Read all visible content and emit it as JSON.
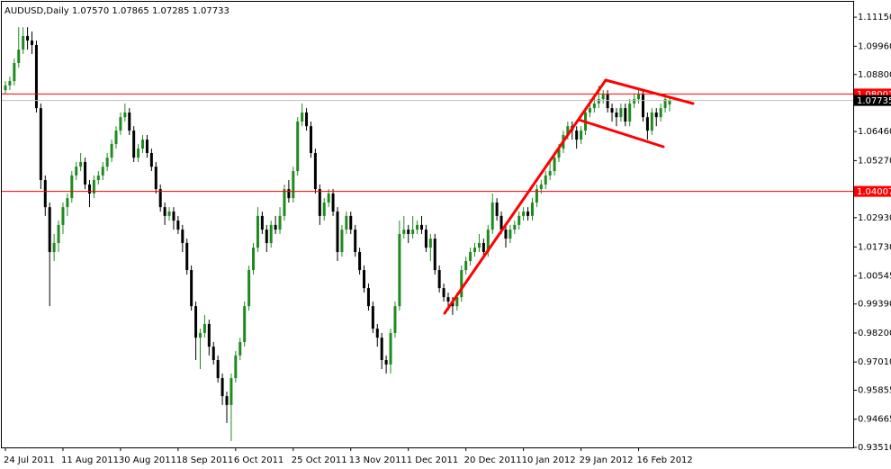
{
  "chart_data": {
    "type": "candlestick",
    "title": "AUDUSD,Daily 1.07570 1.07865 1.07285 1.07733",
    "categories": [
      "24 Jul 2011",
      null,
      null,
      null,
      null,
      null,
      null,
      null,
      null,
      null,
      null,
      null,
      null,
      "11 Aug 2011",
      null,
      null,
      null,
      null,
      null,
      null,
      null,
      null,
      null,
      null,
      null,
      null,
      "30 Aug 2011",
      null,
      null,
      null,
      null,
      null,
      null,
      null,
      null,
      null,
      null,
      null,
      null,
      "18 Sep 2011",
      null,
      null,
      null,
      null,
      null,
      null,
      null,
      null,
      null,
      null,
      null,
      null,
      "6 Oct 2011",
      null,
      null,
      null,
      null,
      null,
      null,
      null,
      null,
      null,
      null,
      null,
      null,
      "25 Oct 2011",
      null,
      null,
      null,
      null,
      null,
      null,
      null,
      null,
      null,
      null,
      null,
      null,
      "13 Nov 2011",
      null,
      null,
      null,
      null,
      null,
      null,
      null,
      null,
      null,
      null,
      null,
      null,
      "1 Dec 2011",
      null,
      null,
      null,
      null,
      null,
      null,
      null,
      null,
      null,
      null,
      null,
      null,
      "20 Dec 2011",
      null,
      null,
      null,
      null,
      null,
      null,
      null,
      null,
      null,
      null,
      null,
      null,
      "10 Jan 2012",
      null,
      null,
      null,
      null,
      null,
      null,
      null,
      null,
      null,
      null,
      null,
      null,
      "29 Jan 2012",
      null,
      null,
      null,
      null,
      null,
      null,
      null,
      null,
      null,
      null,
      null,
      null,
      "16 Feb 2012",
      null,
      null,
      null,
      null,
      null,
      null,
      null
    ],
    "open": [
      1.0816,
      1.0835,
      1.0853,
      1.0927,
      1.0982,
      1.1038,
      1.1019,
      1.1001,
      1.0742,
      1.0447,
      1.0336,
      1.0152,
      1.0189,
      1.0263,
      1.0336,
      1.0373,
      1.0466,
      1.0502,
      1.0521,
      1.0429,
      1.0392,
      1.0447,
      1.0466,
      1.0502,
      1.0539,
      1.0595,
      1.065,
      1.0705,
      1.0724,
      1.065,
      1.0539,
      1.0576,
      1.0613,
      1.0558,
      1.0502,
      1.041,
      1.0336,
      1.03,
      1.0318,
      1.0281,
      1.0244,
      1.0189,
      1.0078,
      0.993,
      0.9801,
      0.982,
      0.9857,
      0.9764,
      0.9709,
      0.9635,
      0.9561,
      0.9525,
      0.9635,
      0.9728,
      0.9783,
      0.993,
      1.0078,
      1.017,
      1.03,
      1.0244,
      1.0189,
      1.0263,
      1.0244,
      1.03,
      1.041,
      1.0373,
      1.0484,
      1.0687,
      1.0724,
      1.0668,
      1.0558,
      1.041,
      1.03,
      1.0355,
      1.0392,
      1.0318,
      1.0152,
      1.0244,
      1.03,
      1.0244,
      1.0152,
      1.0078,
      1.0004,
      0.993,
      0.9838,
      0.9801,
      0.9709,
      0.9691,
      0.982,
      0.993,
      1.0226,
      1.0244,
      1.0226,
      1.0244,
      1.0263,
      1.0244,
      1.017,
      1.0207,
      1.0078,
      1.0004,
      0.9967,
      0.9949,
      0.993,
      0.9967,
      1.0078,
      1.0115,
      1.0152,
      1.017,
      1.0189,
      1.0152,
      1.0244,
      1.0355,
      1.03,
      1.0244,
      1.0207,
      1.0244,
      1.0263,
      1.03,
      1.0318,
      1.03,
      1.0355,
      1.041,
      1.0429,
      1.0466,
      1.0484,
      1.0539,
      1.0576,
      1.0632,
      1.0668,
      1.065,
      1.0613,
      1.065,
      1.0724,
      1.0742,
      1.0761,
      1.0779,
      1.0798,
      1.0742,
      1.0724,
      1.0705,
      1.0742,
      1.0687,
      1.0761,
      1.0779,
      1.0798,
      1.0705,
      1.065,
      1.0724,
      1.0705,
      1.0742,
      1.0757
    ],
    "high": [
      1.0853,
      1.0871,
      1.0945,
      1.1074,
      1.1074,
      1.1074,
      1.1056,
      1.1019,
      1.0761,
      1.0466,
      1.0355,
      1.0226,
      1.0281,
      1.0355,
      1.0392,
      1.0484,
      1.0521,
      1.0558,
      1.0539,
      1.0447,
      1.0466,
      1.0484,
      1.0521,
      1.0558,
      1.0613,
      1.0668,
      1.0724,
      1.0761,
      1.0742,
      1.0668,
      1.0595,
      1.0632,
      1.0632,
      1.0576,
      1.0521,
      1.0429,
      1.0355,
      1.0336,
      1.0336,
      1.03,
      1.0263,
      1.0207,
      1.0097,
      0.9949,
      0.9838,
      0.9894,
      0.9875,
      0.9783,
      0.9728,
      0.9654,
      0.958,
      0.9654,
      0.9746,
      0.9801,
      0.9949,
      1.0097,
      1.0189,
      1.0336,
      1.0318,
      1.0263,
      1.0281,
      1.03,
      1.0336,
      1.0429,
      1.0447,
      1.0502,
      1.0705,
      1.0761,
      1.0742,
      1.0687,
      1.0576,
      1.0429,
      1.0373,
      1.041,
      1.041,
      1.0336,
      1.0263,
      1.0318,
      1.0318,
      1.0263,
      1.017,
      1.0097,
      1.0023,
      0.9949,
      0.9857,
      0.982,
      0.9728,
      0.9838,
      0.9949,
      1.0281,
      1.03,
      1.0263,
      1.03,
      1.0281,
      1.03,
      1.0263,
      1.0226,
      1.0226,
      1.0097,
      1.0023,
      0.9986,
      0.9967,
      0.9986,
      1.0097,
      1.0133,
      1.017,
      1.0189,
      1.0226,
      1.0207,
      1.0263,
      1.0392,
      1.0373,
      1.0318,
      1.0263,
      1.0263,
      1.0281,
      1.0318,
      1.0336,
      1.0336,
      1.0373,
      1.0429,
      1.0447,
      1.0484,
      1.0521,
      1.0558,
      1.0595,
      1.065,
      1.0687,
      1.0687,
      1.0668,
      1.0668,
      1.0742,
      1.0779,
      1.0798,
      1.0835,
      1.0816,
      1.0816,
      1.0761,
      1.0742,
      1.0761,
      1.0761,
      1.0779,
      1.0798,
      1.0816,
      1.0816,
      1.0724,
      1.0742,
      1.0742,
      1.0761,
      1.0798,
      1.07865
    ],
    "low": [
      1.0798,
      1.0816,
      1.0835,
      1.0908,
      1.0964,
      1.0982,
      1.0964,
      1.0724,
      1.041,
      1.03,
      0.993,
      1.0115,
      1.0152,
      1.0226,
      1.03,
      1.0355,
      1.0447,
      1.0484,
      1.041,
      1.0336,
      1.0373,
      1.0429,
      1.0447,
      1.0484,
      1.0521,
      1.0576,
      1.0632,
      1.0687,
      1.0632,
      1.0521,
      1.0521,
      1.0558,
      1.0539,
      1.0484,
      1.0392,
      1.0318,
      1.0263,
      1.0281,
      1.0244,
      1.0226,
      1.0152,
      1.006,
      0.9912,
      0.9709,
      0.9672,
      0.9801,
      0.9728,
      0.9691,
      0.9617,
      0.9525,
      0.9451,
      0.9377,
      0.9617,
      0.9709,
      0.9764,
      0.9912,
      1.006,
      1.0152,
      1.0226,
      1.0152,
      1.017,
      1.0226,
      1.0226,
      1.0281,
      1.0355,
      1.0355,
      1.0466,
      1.0668,
      1.065,
      1.0539,
      1.0392,
      1.0263,
      1.0281,
      1.0336,
      1.03,
      1.0115,
      1.0133,
      1.0226,
      1.0226,
      1.0133,
      1.006,
      0.9986,
      0.9912,
      0.982,
      0.9764,
      0.9672,
      0.9654,
      0.9654,
      0.9801,
      0.9912,
      1.0207,
      1.0189,
      1.0207,
      1.0226,
      1.0226,
      1.0152,
      1.0115,
      1.006,
      0.9986,
      0.9949,
      0.9912,
      0.9894,
      0.9912,
      0.9949,
      1.006,
      1.0097,
      1.0133,
      1.0152,
      1.0133,
      1.0133,
      1.0226,
      1.0281,
      1.0226,
      1.017,
      1.0189,
      1.0226,
      1.0244,
      1.0281,
      1.0281,
      1.0281,
      1.0336,
      1.0392,
      1.041,
      1.0447,
      1.0466,
      1.0521,
      1.0558,
      1.0613,
      1.0613,
      1.0576,
      1.0595,
      1.0632,
      1.0705,
      1.0724,
      1.0742,
      1.0761,
      1.0724,
      1.0687,
      1.0668,
      1.0687,
      1.0668,
      1.0668,
      1.0742,
      1.0761,
      1.0687,
      1.0613,
      1.0632,
      1.0668,
      1.0687,
      1.0724,
      1.07285
    ],
    "close": [
      1.0835,
      1.0853,
      1.0927,
      1.0982,
      1.1038,
      1.1019,
      1.1001,
      1.0742,
      1.0447,
      1.0336,
      1.0152,
      1.0189,
      1.0263,
      1.0336,
      1.0373,
      1.0466,
      1.0502,
      1.0521,
      1.0429,
      1.0392,
      1.0447,
      1.0466,
      1.0502,
      1.0539,
      1.0595,
      1.065,
      1.0705,
      1.0724,
      1.065,
      1.0539,
      1.0576,
      1.0613,
      1.0558,
      1.0502,
      1.041,
      1.0336,
      1.03,
      1.0318,
      1.0281,
      1.0244,
      1.0189,
      1.0078,
      0.993,
      0.9801,
      0.982,
      0.9857,
      0.9764,
      0.9709,
      0.9635,
      0.9561,
      0.9525,
      0.9635,
      0.9728,
      0.9783,
      0.993,
      1.0078,
      1.017,
      1.03,
      1.0244,
      1.0189,
      1.0263,
      1.0244,
      1.03,
      1.041,
      1.0373,
      1.0484,
      1.0687,
      1.0724,
      1.0668,
      1.0558,
      1.041,
      1.03,
      1.0355,
      1.0392,
      1.0318,
      1.0152,
      1.0244,
      1.03,
      1.0244,
      1.0152,
      1.0078,
      1.0004,
      0.993,
      0.9838,
      0.9801,
      0.9709,
      0.9691,
      0.982,
      0.993,
      1.0226,
      1.0244,
      1.0226,
      1.0244,
      1.0263,
      1.0244,
      1.017,
      1.0207,
      1.0078,
      1.0004,
      0.9967,
      0.9949,
      0.993,
      0.9967,
      1.0078,
      1.0115,
      1.0152,
      1.017,
      1.0189,
      1.0152,
      1.0244,
      1.0355,
      1.03,
      1.0244,
      1.0207,
      1.0244,
      1.0263,
      1.03,
      1.0318,
      1.03,
      1.0355,
      1.041,
      1.0429,
      1.0466,
      1.0484,
      1.0539,
      1.0576,
      1.0632,
      1.0668,
      1.065,
      1.0613,
      1.065,
      1.0724,
      1.0742,
      1.0761,
      1.0779,
      1.0798,
      1.0742,
      1.0724,
      1.0705,
      1.0742,
      1.0687,
      1.0761,
      1.0779,
      1.0798,
      1.0705,
      1.065,
      1.0724,
      1.0705,
      1.0742,
      1.0779,
      1.07733
    ],
    "up_color": "#1f8a1f",
    "down_color": "#000000",
    "ylim": [
      0.9351,
      1.1167
    ],
    "yticks": [
      {
        "value": 1.1115,
        "label": "1.11150"
      },
      {
        "value": 1.0996,
        "label": "1.09960"
      },
      {
        "value": 1.088,
        "label": "1.08800"
      },
      {
        "value": 1.0646,
        "label": "1.06460"
      },
      {
        "value": 1.0527,
        "label": "1.05270"
      },
      {
        "value": 1.0293,
        "label": "1.02930"
      },
      {
        "value": 1.0173,
        "label": "1.01730"
      },
      {
        "value": 1.00545,
        "label": "1.00545"
      },
      {
        "value": 0.9939,
        "label": "0.99390"
      },
      {
        "value": 0.982,
        "label": "0.98200"
      },
      {
        "value": 0.9701,
        "label": "0.97010"
      },
      {
        "value": 0.95855,
        "label": "0.95855"
      },
      {
        "value": 0.94665,
        "label": "0.94665"
      },
      {
        "value": 0.9351,
        "label": "0.93510"
      }
    ],
    "hlines": [
      {
        "value": 1.08001,
        "color": "#ff0000",
        "box_color": "#ff0000"
      },
      {
        "value": 1.04007,
        "color": "#ff0000",
        "box_color": "#ff0000"
      },
      {
        "value": 1.07735,
        "color": "#c0c0c0",
        "box_color": "#000000"
      }
    ]
  }
}
